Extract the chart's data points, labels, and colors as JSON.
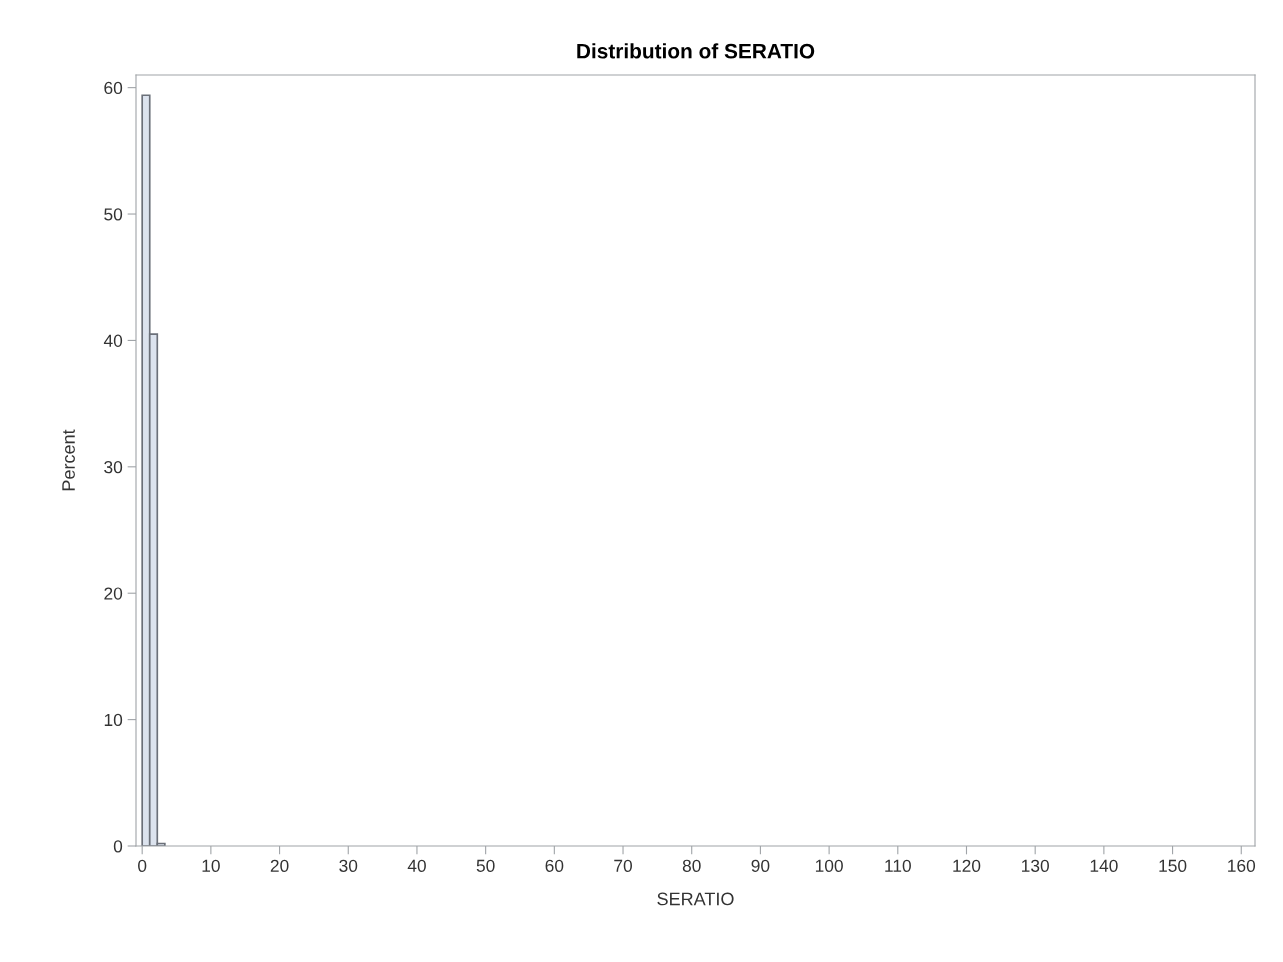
{
  "chart_data": {
    "type": "histogram",
    "title": "Distribution of SERATIO",
    "xlabel": "SERATIO",
    "ylabel": "Percent",
    "bins": [
      0,
      1.1,
      2.2,
      3.3
    ],
    "values": [
      59.4,
      40.5,
      0.2
    ],
    "color": "#dce3ee",
    "xlim": [
      -0.9,
      162
    ],
    "xticks": [
      0,
      10,
      20,
      30,
      40,
      50,
      60,
      70,
      80,
      90,
      100,
      110,
      120,
      130,
      140,
      150,
      160
    ],
    "ylim": [
      0,
      61
    ],
    "yticks": [
      0,
      10,
      20,
      30,
      40,
      50,
      60
    ],
    "grid": false,
    "legend": false
  }
}
